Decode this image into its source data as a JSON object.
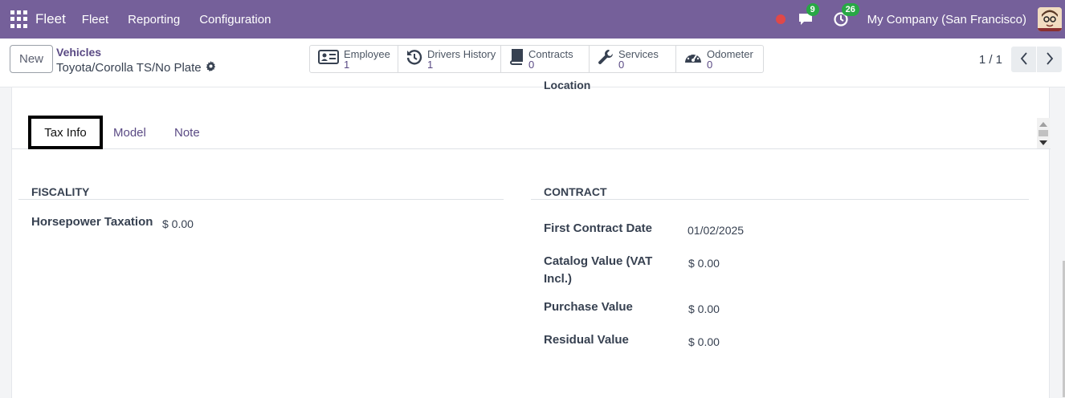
{
  "navbar": {
    "app_name": "Fleet",
    "menu": [
      "Fleet",
      "Reporting",
      "Configuration"
    ],
    "messages_count": "9",
    "activities_count": "26",
    "company": "My Company (San Francisco)"
  },
  "control": {
    "new_label": "New",
    "breadcrumb_parent": "Vehicles",
    "breadcrumb_current": "Toyota/Corolla TS/No Plate",
    "smart_buttons": [
      {
        "label": "Employee",
        "value": "1",
        "icon": "id-card-icon"
      },
      {
        "label": "Drivers History",
        "value": "1",
        "icon": "history-icon"
      },
      {
        "label": "Contracts",
        "value": "0",
        "icon": "book-icon"
      },
      {
        "label": "Services",
        "value": "0",
        "icon": "wrench-icon"
      },
      {
        "label": "Odometer",
        "value": "0",
        "icon": "gauge-icon"
      }
    ],
    "pager": "1 / 1"
  },
  "sheet": {
    "location_label": "Location",
    "tabs": [
      "Tax Info",
      "Model",
      "Note"
    ],
    "fiscality": {
      "title": "FISCALITY",
      "horsepower_taxation_label": "Horsepower Taxation",
      "horsepower_taxation_value": "$ 0.00"
    },
    "contract": {
      "title": "CONTRACT",
      "first_contract_date_label": "First Contract Date",
      "first_contract_date_value": "01/02/2025",
      "catalog_value_label_line1": "Catalog Value (VAT",
      "catalog_value_label_line2": "Incl.)",
      "catalog_value_value": "$ 0.00",
      "purchase_value_label": "Purchase Value",
      "purchase_value_value": "$ 0.00",
      "residual_value_label": "Residual Value",
      "residual_value_value": "$ 0.00"
    }
  }
}
